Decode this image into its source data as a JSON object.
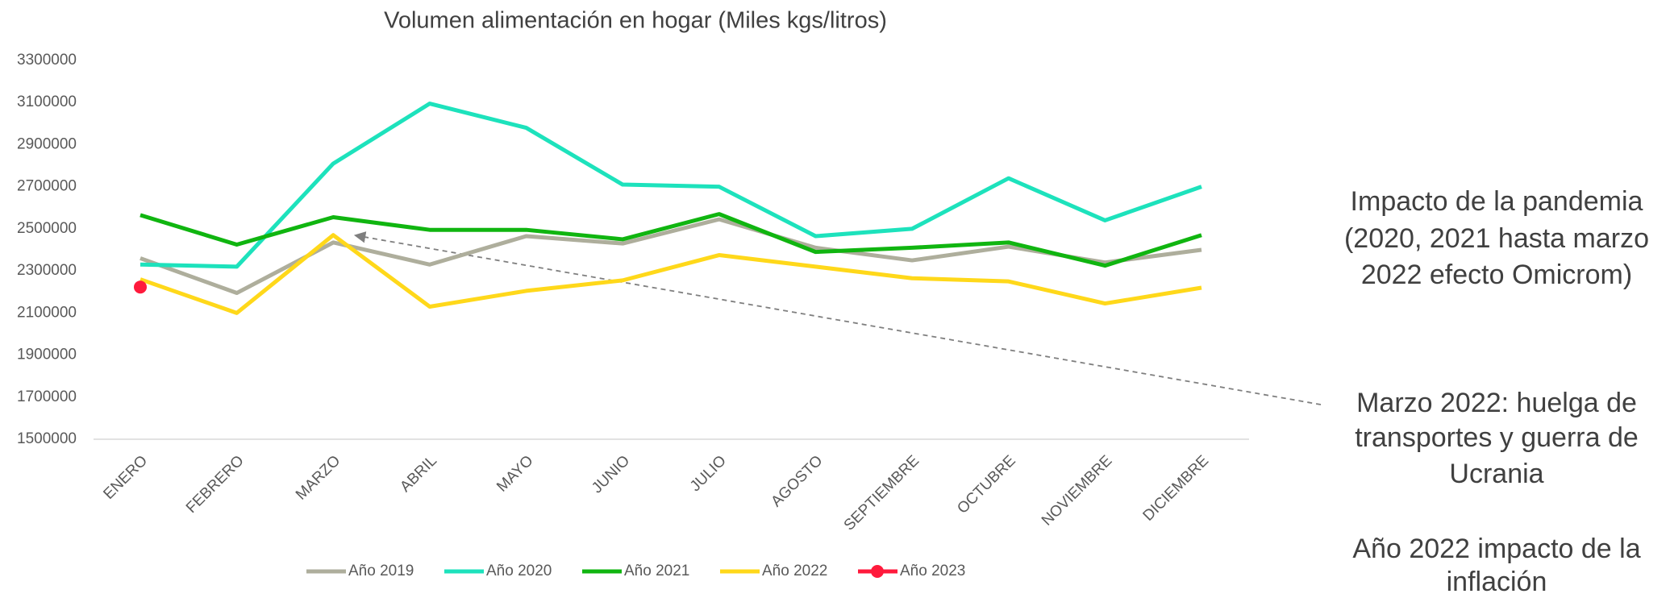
{
  "chart_data": {
    "type": "line",
    "title": "Volumen alimentación en hogar (Miles kgs/litros)",
    "categories": [
      "ENERO",
      "FEBRERO",
      "MARZO",
      "ABRIL",
      "MAYO",
      "JUNIO",
      "JULIO",
      "AGOSTO",
      "SEPTIEMBRE",
      "OCTUBRE",
      "NOVIEMBRE",
      "DICIEMBRE"
    ],
    "series": [
      {
        "name": "Año 2019",
        "color": "#aeae9c",
        "values": [
          2360000,
          2195000,
          2435000,
          2330000,
          2465000,
          2430000,
          2545000,
          2410000,
          2350000,
          2415000,
          2340000,
          2400000
        ]
      },
      {
        "name": "Año 2020",
        "color": "#1de2bc",
        "values": [
          2330000,
          2320000,
          2810000,
          3095000,
          2980000,
          2710000,
          2700000,
          2465000,
          2500000,
          2740000,
          2540000,
          2700000
        ]
      },
      {
        "name": "Año 2021",
        "color": "#10b510",
        "values": [
          2565000,
          2425000,
          2555000,
          2495000,
          2495000,
          2450000,
          2570000,
          2390000,
          2410000,
          2435000,
          2325000,
          2470000
        ]
      },
      {
        "name": "Año 2022",
        "color": "#ffd81a",
        "values": [
          2260000,
          2100000,
          2470000,
          2130000,
          2205000,
          2255000,
          2375000,
          2320000,
          2265000,
          2250000,
          2145000,
          2220000
        ]
      },
      {
        "name": "Año 2023",
        "color": "#ff1a3c",
        "marker": "circle",
        "values": [
          2223000,
          null,
          null,
          null,
          null,
          null,
          null,
          null,
          null,
          null,
          null,
          null
        ]
      }
    ],
    "ylim": [
      1500000,
      3300000
    ],
    "yticks": [
      1500000,
      1700000,
      1900000,
      2100000,
      2300000,
      2500000,
      2700000,
      2900000,
      3100000,
      3300000
    ],
    "grid": false,
    "legend": "bottom",
    "annotations": [
      [
        "Impacto de la pandemia",
        "(2020, 2021 hasta marzo",
        "2022 efecto Omicrom)"
      ],
      [
        "Marzo 2022: huelga de",
        "transportes y guerra de",
        "Ucrania"
      ],
      [
        "Año 2022 impacto de la",
        "inflación"
      ]
    ]
  }
}
